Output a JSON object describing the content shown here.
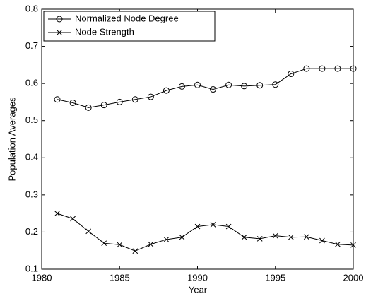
{
  "chart_data": {
    "type": "line",
    "x_label": "Year",
    "y_label": "Population Averages",
    "x": [
      1981,
      1982,
      1983,
      1984,
      1985,
      1986,
      1987,
      1988,
      1989,
      1990,
      1991,
      1992,
      1993,
      1994,
      1995,
      1996,
      1997,
      1998,
      1999,
      2000
    ],
    "series": [
      {
        "name": "Normalized Node Degree",
        "color": "#000000",
        "marker": "circle",
        "values": [
          0.557,
          0.548,
          0.535,
          0.542,
          0.55,
          0.557,
          0.564,
          0.581,
          0.592,
          0.596,
          0.584,
          0.596,
          0.593,
          0.595,
          0.597,
          0.626,
          0.64,
          0.64,
          0.64,
          0.64
        ]
      },
      {
        "name": "Node Strength",
        "color": "#000000",
        "marker": "x",
        "values": [
          0.25,
          0.236,
          0.202,
          0.17,
          0.166,
          0.149,
          0.167,
          0.18,
          0.186,
          0.215,
          0.22,
          0.215,
          0.186,
          0.182,
          0.19,
          0.186,
          0.187,
          0.177,
          0.167,
          0.165
        ]
      }
    ],
    "xlim": [
      1980,
      2000
    ],
    "xticks": [
      1980,
      1985,
      1990,
      1995,
      2000
    ],
    "ylim": [
      0.1,
      0.8
    ],
    "yticks": [
      0.1,
      0.2,
      0.3,
      0.4,
      0.5,
      0.6,
      0.7,
      0.8
    ],
    "grid": false,
    "legend_position": "upper-left"
  }
}
